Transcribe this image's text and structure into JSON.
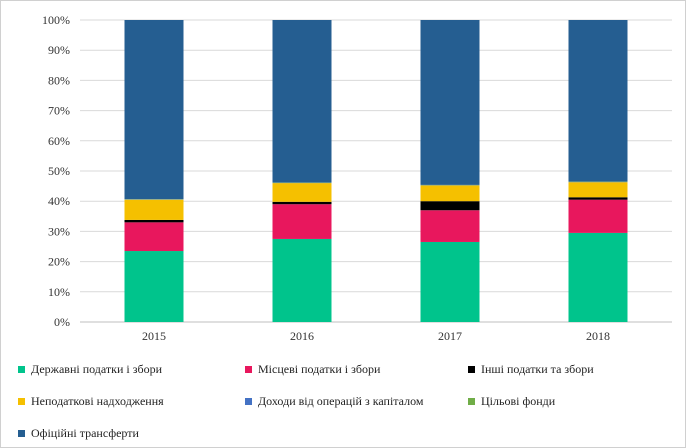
{
  "chart_data": {
    "type": "bar",
    "stacked": true,
    "percent": true,
    "categories": [
      "2015",
      "2016",
      "2017",
      "2018"
    ],
    "y_ticks": [
      "0%",
      "10%",
      "20%",
      "30%",
      "40%",
      "50%",
      "60%",
      "70%",
      "80%",
      "90%",
      "100%"
    ],
    "ylim": [
      0,
      100
    ],
    "grid": true,
    "legend_position": "bottom",
    "series": [
      {
        "name": "Державні податки і збори",
        "color": "#00c48c",
        "values": [
          23.5,
          27.5,
          26.5,
          29.5
        ]
      },
      {
        "name": "Місцеві податки і збори",
        "color": "#e8175d",
        "values": [
          9.5,
          11.5,
          10.5,
          11.0
        ]
      },
      {
        "name": "Інші податки та збори",
        "color": "#000000",
        "values": [
          0.8,
          0.8,
          3.0,
          0.8
        ]
      },
      {
        "name": "Неподаткові надходження",
        "color": "#f5c000",
        "values": [
          6.7,
          6.2,
          5.2,
          5.0
        ]
      },
      {
        "name": "Доходи від операцій з капіталом",
        "color": "#4472c4",
        "values": [
          0.1,
          0.1,
          0.1,
          0.1
        ]
      },
      {
        "name": "Цільові фонди",
        "color": "#70ad47",
        "values": [
          0.1,
          0.1,
          0.1,
          0.1
        ]
      },
      {
        "name": "Офіційні трансферти",
        "color": "#255e91",
        "values": [
          59.3,
          53.8,
          54.6,
          53.5
        ]
      }
    ]
  }
}
